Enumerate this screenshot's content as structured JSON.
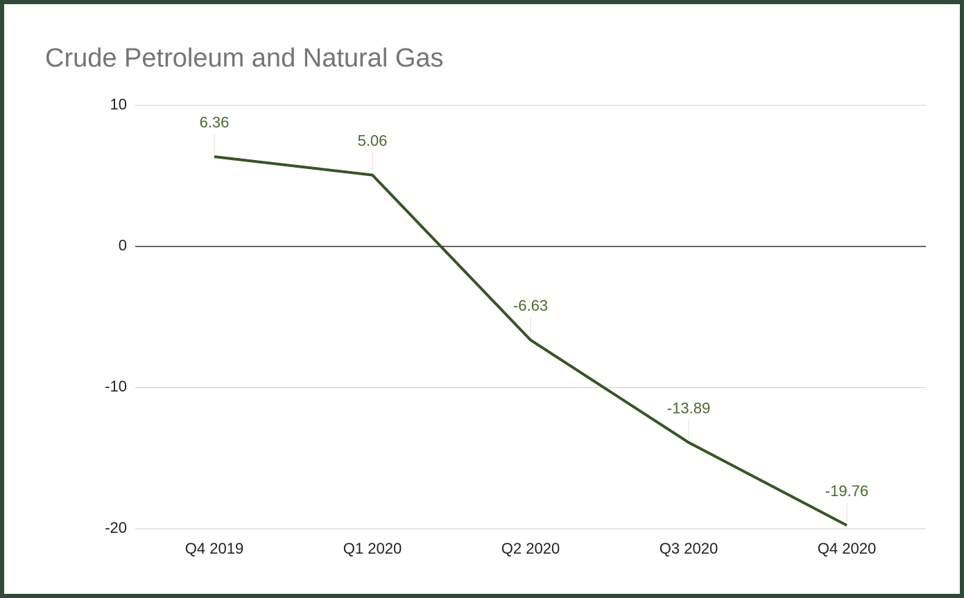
{
  "chart_data": {
    "type": "line",
    "title": "Crude Petroleum and Natural Gas",
    "categories": [
      "Q4 2019",
      "Q1 2020",
      "Q2 2020",
      "Q3 2020",
      "Q4 2020"
    ],
    "values": [
      6.36,
      5.06,
      -6.63,
      -13.89,
      -19.76
    ],
    "color": "#375623",
    "ylim": [
      -20,
      10
    ],
    "yticks": [
      -20,
      -10,
      0,
      10
    ],
    "grid": true
  }
}
